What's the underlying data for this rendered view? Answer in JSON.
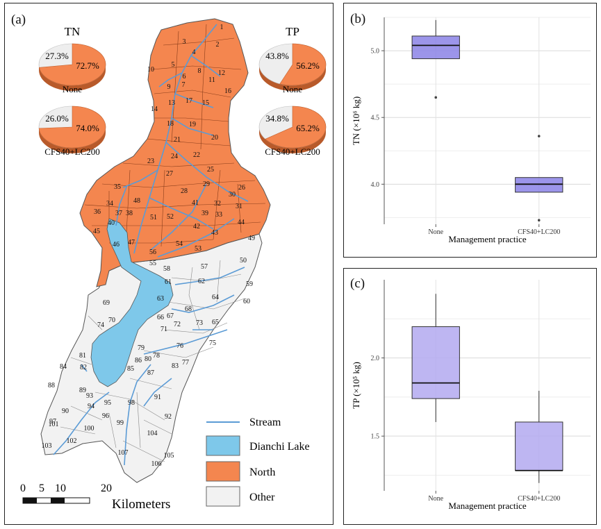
{
  "panel_a": {
    "label": "(a)",
    "pies": [
      {
        "title": "TN",
        "scenario": "None",
        "other": "27.3%",
        "north": "72.7%"
      },
      {
        "title": "TP",
        "scenario": "None",
        "other": "43.8%",
        "north": "56.2%"
      },
      {
        "scenario": "CFS40+LC200",
        "other": "26.0%",
        "north": "74.0%"
      },
      {
        "scenario": "CFS40+LC200",
        "other": "34.8%",
        "north": "65.2%"
      }
    ],
    "legend": [
      {
        "label": "Stream",
        "color": "#5b9bd5"
      },
      {
        "label": "Dianchi Lake",
        "color": "#7ec8ea"
      },
      {
        "label": "North",
        "color": "#f4864f"
      },
      {
        "label": "Other",
        "color": "#f2f2f2"
      }
    ],
    "scalebar": {
      "ticks": [
        "0",
        "5",
        "10",
        "20"
      ],
      "unit": "Kilometers"
    },
    "subbasins": [
      "1",
      "2",
      "3",
      "4",
      "5",
      "6",
      "7",
      "8",
      "9",
      "10",
      "11",
      "12",
      "13",
      "14",
      "15",
      "16",
      "17",
      "18",
      "19",
      "20",
      "21",
      "22",
      "23",
      "24",
      "25",
      "26",
      "27",
      "28",
      "29",
      "30",
      "31",
      "32",
      "33",
      "34",
      "35",
      "36",
      "37",
      "38",
      "39",
      "40",
      "41",
      "42",
      "43",
      "44",
      "45",
      "46",
      "47",
      "48",
      "49",
      "50",
      "51",
      "52",
      "53",
      "54",
      "55",
      "56",
      "57",
      "58",
      "59",
      "60",
      "61",
      "62",
      "63",
      "64",
      "65",
      "66",
      "67",
      "68",
      "69",
      "70",
      "71",
      "72",
      "73",
      "74",
      "75",
      "76",
      "77",
      "78",
      "79",
      "80",
      "81",
      "82",
      "83",
      "84",
      "85",
      "86",
      "87",
      "88",
      "89",
      "90",
      "91",
      "92",
      "93",
      "94",
      "95",
      "96",
      "97",
      "98",
      "99",
      "100",
      "101",
      "102",
      "103",
      "104",
      "105",
      "106",
      "107"
    ]
  },
  "chart_data": [
    {
      "panel": "(b)",
      "type": "boxplot",
      "xlabel": "Management practice",
      "ylabel": "TN (×10⁶ kg)",
      "ylim": [
        3.7,
        5.25
      ],
      "yticks": [
        "4.0",
        "4.5",
        "5.0"
      ],
      "color": "#8b83e6",
      "categories": [
        "None",
        "CFS40+LC200"
      ],
      "boxes": [
        {
          "q1": 4.94,
          "median": 5.04,
          "q3": 5.11,
          "whisker_low": 4.94,
          "whisker_high": 5.23,
          "outliers": [
            4.65
          ]
        },
        {
          "q1": 3.94,
          "median": 4.0,
          "q3": 4.05,
          "whisker_low": 3.94,
          "whisker_high": 4.05,
          "outliers": [
            4.36,
            3.73
          ]
        }
      ]
    },
    {
      "panel": "(c)",
      "type": "boxplot",
      "xlabel": "Management practice",
      "ylabel": "TP (×10⁵ kg)",
      "ylim": [
        1.15,
        2.5
      ],
      "yticks": [
        "1.5",
        "2.0"
      ],
      "color": "#b3a9f0",
      "categories": [
        "None",
        "CFS40+LC200"
      ],
      "boxes": [
        {
          "q1": 1.74,
          "median": 1.84,
          "q3": 2.2,
          "whisker_low": 1.59,
          "whisker_high": 2.41,
          "outliers": []
        },
        {
          "q1": 1.28,
          "median": 1.28,
          "q3": 1.59,
          "whisker_low": 1.2,
          "whisker_high": 1.79,
          "outliers": []
        }
      ]
    }
  ]
}
